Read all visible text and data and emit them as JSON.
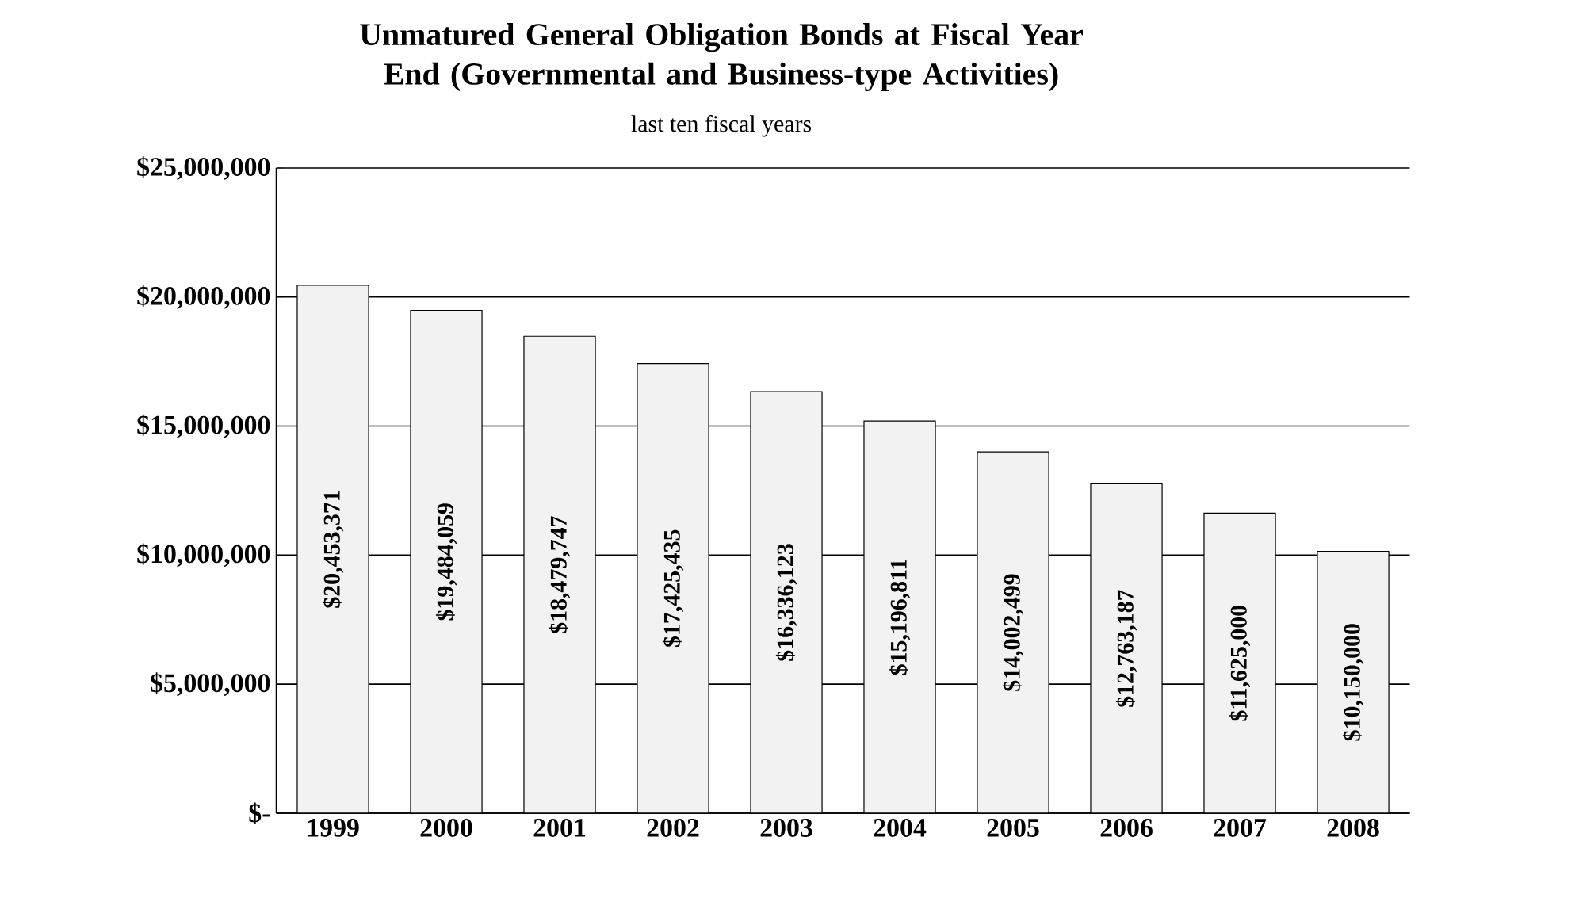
{
  "chart_data": {
    "type": "bar",
    "title": "Unmatured General Obligation Bonds at Fiscal Year End (Governmental and Business-type Activities)",
    "subtitle": "last ten fiscal years",
    "categories": [
      "1999",
      "2000",
      "2001",
      "2002",
      "2003",
      "2004",
      "2005",
      "2006",
      "2007",
      "2008"
    ],
    "values": [
      20453371,
      19484059,
      18479747,
      17425435,
      16336123,
      15196811,
      14002499,
      12763187,
      11625000,
      10150000
    ],
    "value_labels": [
      "$20,453,371",
      "$19,484,059",
      "$18,479,747",
      "$17,425,435",
      "$16,336,123",
      "$15,196,811",
      "$14,002,499",
      "$12,763,187",
      "$11,625,000",
      "$10,150,000"
    ],
    "color": "#f2f2f2",
    "ylim": [
      0,
      25000000
    ],
    "yticks": [
      {
        "value": 0,
        "label": "$-"
      },
      {
        "value": 5000000,
        "label": "$5,000,000"
      },
      {
        "value": 10000000,
        "label": "$10,000,000"
      },
      {
        "value": 15000000,
        "label": "$15,000,000"
      },
      {
        "value": 20000000,
        "label": "$20,000,000"
      },
      {
        "value": 25000000,
        "label": "$25,000,000"
      }
    ],
    "grid": "y"
  }
}
